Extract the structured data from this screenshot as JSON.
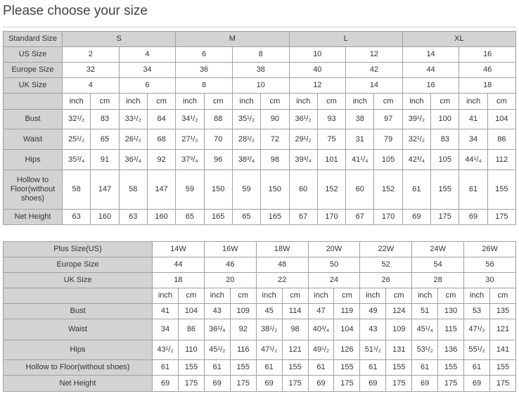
{
  "title": "Please choose your size",
  "standard_table": {
    "header": {
      "label": "Standard Size",
      "groups": [
        "S",
        "M",
        "L",
        "XL"
      ]
    },
    "size_rows": [
      {
        "label": "US Size",
        "values": [
          "2",
          "4",
          "6",
          "8",
          "10",
          "12",
          "14",
          "16"
        ]
      },
      {
        "label": "Europe Size",
        "values": [
          "32",
          "34",
          "36",
          "38",
          "40",
          "42",
          "44",
          "46"
        ]
      },
      {
        "label": "UK Size",
        "values": [
          "4",
          "6",
          "8",
          "10",
          "12",
          "14",
          "16",
          "18"
        ]
      }
    ],
    "units": {
      "label": "",
      "values": [
        "inch",
        "cm",
        "inch",
        "cm",
        "inch",
        "cm",
        "inch",
        "cm",
        "inch",
        "cm",
        "inch",
        "cm",
        "inch",
        "cm",
        "inch",
        "cm"
      ]
    },
    "measure_rows": [
      {
        "label": "Bust",
        "values": [
          "32¹/₂",
          "83",
          "33¹/₂",
          "84",
          "34¹/₂",
          "88",
          "35¹/₂",
          "90",
          "36¹/₂",
          "93",
          "38",
          "97",
          "39¹/₂",
          "100",
          "41",
          "104"
        ]
      },
      {
        "label": "Waist",
        "values": [
          "25¹/₂",
          "65",
          "26¹/₂",
          "68",
          "27¹/₂",
          "70",
          "28¹/₂",
          "72",
          "29¹/₂",
          "75",
          "31",
          "79",
          "32¹/₂",
          "83",
          "34",
          "86"
        ]
      },
      {
        "label": "Hips",
        "values": [
          "35³/₄",
          "91",
          "36³/₄",
          "92",
          "37³/₄",
          "96",
          "38³/₄",
          "98",
          "39³/₄",
          "101",
          "41¹/₄",
          "105",
          "42³/₄",
          "105",
          "44¹/₄",
          "112"
        ]
      },
      {
        "label": "Hollow to Floor(without shoes)",
        "values": [
          "58",
          "147",
          "58",
          "147",
          "59",
          "150",
          "59",
          "150",
          "60",
          "152",
          "60",
          "152",
          "61",
          "155",
          "61",
          "155"
        ]
      },
      {
        "label": "Net Height",
        "values": [
          "63",
          "160",
          "63",
          "160",
          "65",
          "165",
          "65",
          "165",
          "67",
          "170",
          "67",
          "170",
          "69",
          "175",
          "69",
          "175"
        ]
      }
    ]
  },
  "plus_table": {
    "size_rows": [
      {
        "label": "Plus Size(US)",
        "values": [
          "14W",
          "16W",
          "18W",
          "20W",
          "22W",
          "24W",
          "26W"
        ]
      },
      {
        "label": "Europe Size",
        "values": [
          "44",
          "46",
          "48",
          "50",
          "52",
          "54",
          "56"
        ]
      },
      {
        "label": "UK Size",
        "values": [
          "18",
          "20",
          "22",
          "24",
          "26",
          "28",
          "30"
        ]
      }
    ],
    "units": {
      "label": "",
      "values": [
        "inch",
        "cm",
        "inch",
        "cm",
        "inch",
        "cm",
        "inch",
        "cm",
        "inch",
        "cm",
        "inch",
        "cm",
        "inch",
        "cm"
      ]
    },
    "measure_rows": [
      {
        "label": "Bust",
        "values": [
          "41",
          "104",
          "43",
          "109",
          "45",
          "114",
          "47",
          "119",
          "49",
          "124",
          "51",
          "130",
          "53",
          "135"
        ]
      },
      {
        "label": "Waist",
        "values": [
          "34",
          "86",
          "36¹/₄",
          "92",
          "38¹/₂",
          "98",
          "40³/₄",
          "104",
          "43",
          "109",
          "45¹/₄",
          "115",
          "47¹/₂",
          "121"
        ]
      },
      {
        "label": "Hips",
        "values": [
          "43¹/₂",
          "110",
          "45¹/₂",
          "116",
          "47¹/₂",
          "121",
          "49¹/₂",
          "126",
          "51¹/₂",
          "131",
          "53¹/₂",
          "136",
          "55¹/₂",
          "141"
        ]
      },
      {
        "label": "Hollow to Floor(without shoes)",
        "values": [
          "61",
          "155",
          "61",
          "155",
          "61",
          "155",
          "61",
          "155",
          "61",
          "155",
          "61",
          "155",
          "61",
          "155"
        ]
      },
      {
        "label": "Net Height",
        "values": [
          "69",
          "175",
          "69",
          "175",
          "69",
          "175",
          "69",
          "175",
          "69",
          "175",
          "69",
          "175",
          "69",
          "175"
        ]
      }
    ]
  }
}
